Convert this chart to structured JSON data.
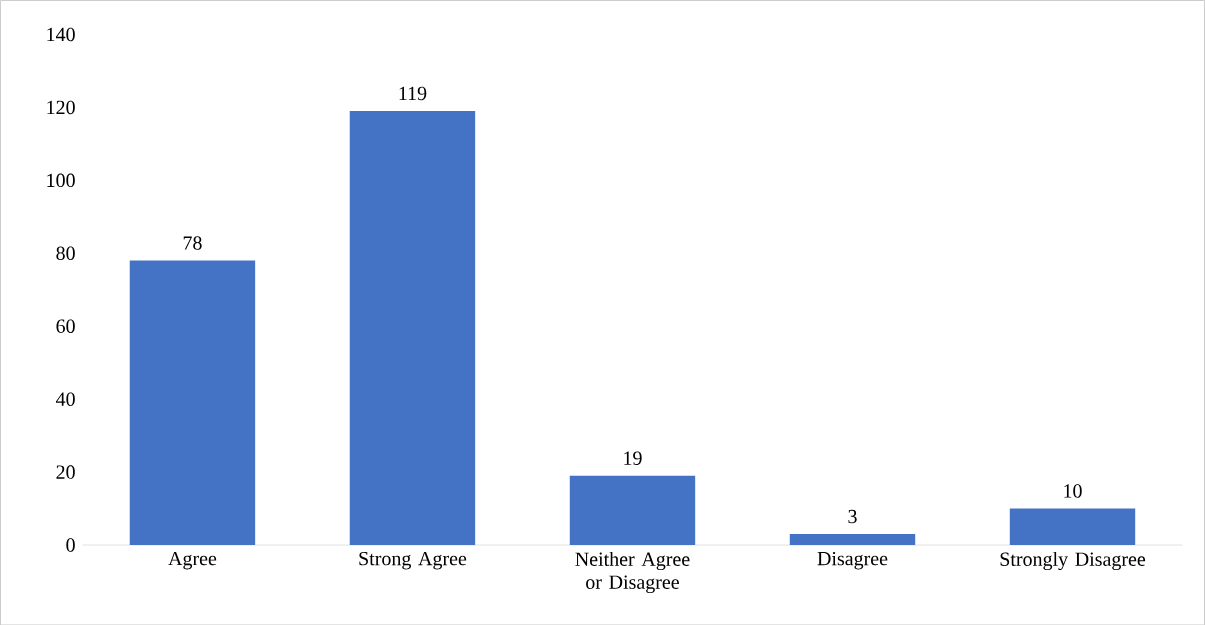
{
  "chart_data": {
    "type": "bar",
    "categories": [
      "Agree",
      "Strong Agree",
      "Neither Agree or Disagree",
      "Disagree",
      "Strongly Disagree"
    ],
    "values": [
      78,
      119,
      19,
      3,
      10
    ],
    "color": "#4472c4",
    "ylim": [
      0,
      140
    ],
    "yticks": [
      0,
      20,
      40,
      60,
      80,
      100,
      120,
      140
    ],
    "grid": false,
    "data_labels": true
  }
}
